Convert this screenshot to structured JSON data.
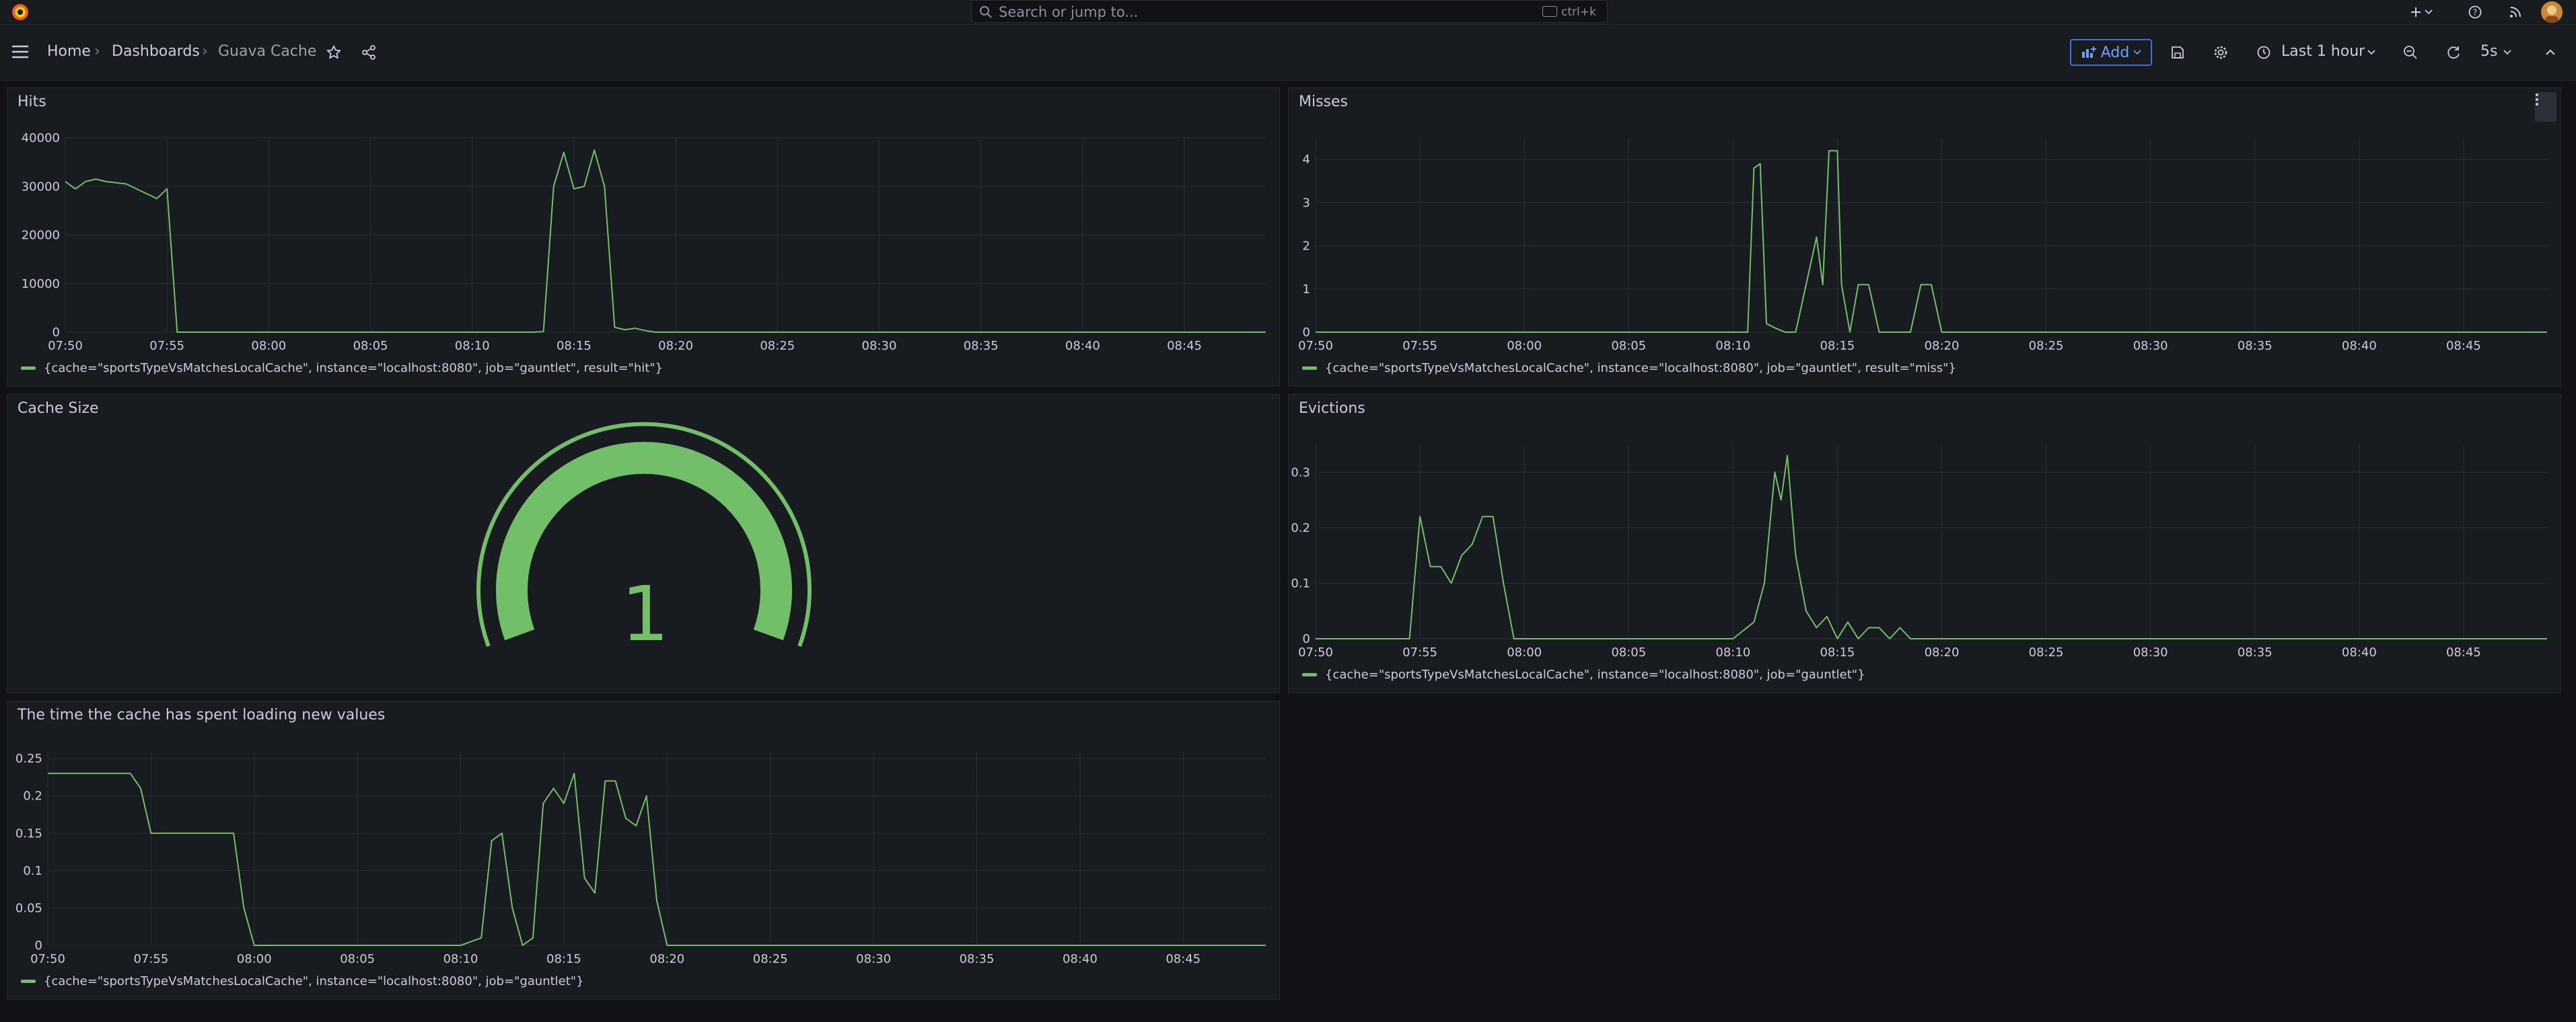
{
  "topbar": {
    "search_placeholder": "Search or jump to...",
    "search_shortcut": "ctrl+k",
    "icons": [
      "grafana-logo-icon",
      "search-icon",
      "keyboard-icon",
      "plus-icon",
      "chevron-down-icon",
      "help-icon",
      "rss-icon",
      "avatar"
    ]
  },
  "breadcrumb": {
    "home": "Home",
    "dashboards": "Dashboards",
    "current": "Guava Cache",
    "separator": "›"
  },
  "toolbar": {
    "add_label": "Add",
    "time_range": "Last 1 hour",
    "refresh_interval": "5s"
  },
  "colors": {
    "series": "#73bf69",
    "accent": "#3d71d9",
    "panel_bg": "#181b1f",
    "page_bg": "#111217"
  },
  "panels": {
    "hits": {
      "title": "Hits",
      "legend": "{cache=\"sportsTypeVsMatchesLocalCache\", instance=\"localhost:8080\", job=\"gauntlet\", result=\"hit\"}"
    },
    "misses": {
      "title": "Misses",
      "legend": "{cache=\"sportsTypeVsMatchesLocalCache\", instance=\"localhost:8080\", job=\"gauntlet\", result=\"miss\"}"
    },
    "cache_size": {
      "title": "Cache Size",
      "value": "1",
      "gauge_fraction": 1.0
    },
    "evictions": {
      "title": "Evictions",
      "legend": "{cache=\"sportsTypeVsMatchesLocalCache\", instance=\"localhost:8080\", job=\"gauntlet\"}"
    },
    "load_time": {
      "title": "The time the cache has spent loading new values",
      "legend": "{cache=\"sportsTypeVsMatchesLocalCache\", instance=\"localhost:8080\", job=\"gauntlet\"}"
    }
  },
  "chart_data": [
    {
      "type": "line",
      "title": "Hits",
      "x_labels": [
        "07:50",
        "07:55",
        "08:00",
        "08:05",
        "08:10",
        "08:15",
        "08:20",
        "08:25",
        "08:30",
        "08:35",
        "08:40",
        "08:45"
      ],
      "y_ticks": [
        "0",
        "10000",
        "20000",
        "30000",
        "40000"
      ],
      "ylim": [
        0,
        40000
      ],
      "grid": true,
      "legend_placement": "bottom-left",
      "x": [
        "07:50",
        "07:50.5",
        "07:51",
        "07:51.5",
        "07:52",
        "07:53",
        "07:54",
        "07:54.5",
        "07:55",
        "07:55.5",
        "08:00",
        "08:05",
        "08:10",
        "08:12",
        "08:13",
        "08:13.5",
        "08:14",
        "08:14.5",
        "08:15",
        "08:15.5",
        "08:16",
        "08:16.5",
        "08:17",
        "08:17.5",
        "08:18",
        "08:18.5",
        "08:19",
        "08:20",
        "08:25",
        "08:30",
        "08:35",
        "08:40",
        "08:45",
        "08:49"
      ],
      "values": [
        31000,
        29500,
        31000,
        31500,
        31000,
        30500,
        28500,
        27500,
        29500,
        0,
        0,
        0,
        0,
        0,
        0,
        100,
        30000,
        37000,
        29500,
        30000,
        37500,
        30000,
        1000,
        500,
        800,
        300,
        0,
        0,
        0,
        0,
        0,
        0,
        0,
        0
      ]
    },
    {
      "type": "line",
      "title": "Misses",
      "x_labels": [
        "07:50",
        "07:55",
        "08:00",
        "08:05",
        "08:10",
        "08:15",
        "08:20",
        "08:25",
        "08:30",
        "08:35",
        "08:40",
        "08:45"
      ],
      "y_ticks": [
        "0",
        "1",
        "2",
        "3",
        "4"
      ],
      "ylim": [
        0,
        4.5
      ],
      "grid": true,
      "legend_placement": "bottom-left",
      "x": [
        "07:50",
        "08:10",
        "08:10.7",
        "08:11",
        "08:11.3",
        "08:11.6",
        "08:12",
        "08:12.5",
        "08:13",
        "08:13.5",
        "08:14",
        "08:14.3",
        "08:14.6",
        "08:15",
        "08:15.2",
        "08:15.6",
        "08:16",
        "08:16.5",
        "08:17",
        "08:17.5",
        "08:18",
        "08:18.5",
        "08:19",
        "08:19.5",
        "08:20",
        "08:25",
        "08:30",
        "08:35",
        "08:40",
        "08:49"
      ],
      "values": [
        0,
        0,
        0,
        3.8,
        3.9,
        0.2,
        0.1,
        0,
        0,
        1.1,
        2.2,
        1.1,
        4.2,
        4.2,
        1.1,
        0,
        1.1,
        1.1,
        0,
        0,
        0,
        0,
        1.1,
        1.1,
        0,
        0,
        0,
        0,
        0,
        0
      ]
    },
    {
      "type": "line",
      "title": "Evictions",
      "x_labels": [
        "07:50",
        "07:55",
        "08:00",
        "08:05",
        "08:10",
        "08:15",
        "08:20",
        "08:25",
        "08:30",
        "08:35",
        "08:40",
        "08:45"
      ],
      "y_ticks": [
        "0",
        "0.1",
        "0.2",
        "0.3"
      ],
      "ylim": [
        0,
        0.35
      ],
      "grid": true,
      "legend_placement": "bottom-left",
      "x": [
        "07:50",
        "07:51",
        "07:54.5",
        "07:55",
        "07:55.5",
        "07:56",
        "07:56.5",
        "07:57",
        "07:57.5",
        "07:58",
        "07:58.5",
        "07:59",
        "07:59.5",
        "08:00",
        "08:10",
        "08:11",
        "08:11.5",
        "08:12",
        "08:12.3",
        "08:12.6",
        "08:13",
        "08:13.5",
        "08:14",
        "08:14.5",
        "08:15",
        "08:15.5",
        "08:16",
        "08:16.5",
        "08:17",
        "08:17.5",
        "08:18",
        "08:18.5",
        "08:19",
        "08:19.5",
        "08:20",
        "08:25",
        "08:30",
        "08:35",
        "08:40",
        "08:49"
      ],
      "values": [
        0,
        0,
        0,
        0.22,
        0.13,
        0.13,
        0.1,
        0.15,
        0.17,
        0.22,
        0.22,
        0.1,
        0,
        0,
        0,
        0.03,
        0.1,
        0.3,
        0.25,
        0.33,
        0.15,
        0.05,
        0.02,
        0.04,
        0,
        0.03,
        0,
        0.02,
        0.02,
        0,
        0.02,
        0,
        0,
        0,
        0,
        0,
        0,
        0,
        0,
        0
      ]
    },
    {
      "type": "line",
      "title": "The time the cache has spent loading new values",
      "x_labels": [
        "07:50",
        "07:55",
        "08:00",
        "08:05",
        "08:10",
        "08:15",
        "08:20",
        "08:25",
        "08:30",
        "08:35",
        "08:40",
        "08:45"
      ],
      "y_ticks": [
        "0",
        "0.05",
        "0.1",
        "0.15",
        "0.2",
        "0.25"
      ],
      "ylim": [
        0,
        0.26
      ],
      "grid": true,
      "legend_placement": "bottom-left",
      "x": [
        "07:50",
        "07:54",
        "07:54.5",
        "07:55",
        "07:59",
        "07:59.5",
        "08:00",
        "08:10",
        "08:11",
        "08:11.5",
        "08:12",
        "08:12.5",
        "08:13",
        "08:13.5",
        "08:14",
        "08:14.5",
        "08:15",
        "08:15.5",
        "08:16",
        "08:16.5",
        "08:17",
        "08:17.5",
        "08:18",
        "08:18.5",
        "08:19",
        "08:19.5",
        "08:20",
        "08:20.5",
        "08:25",
        "08:30",
        "08:35",
        "08:40",
        "08:49"
      ],
      "values": [
        0.23,
        0.23,
        0.21,
        0.15,
        0.15,
        0.05,
        0,
        0,
        0.01,
        0.14,
        0.15,
        0.05,
        0,
        0.01,
        0.19,
        0.21,
        0.19,
        0.23,
        0.09,
        0.07,
        0.22,
        0.22,
        0.17,
        0.16,
        0.2,
        0.06,
        0,
        0,
        0,
        0,
        0,
        0,
        0
      ]
    }
  ]
}
